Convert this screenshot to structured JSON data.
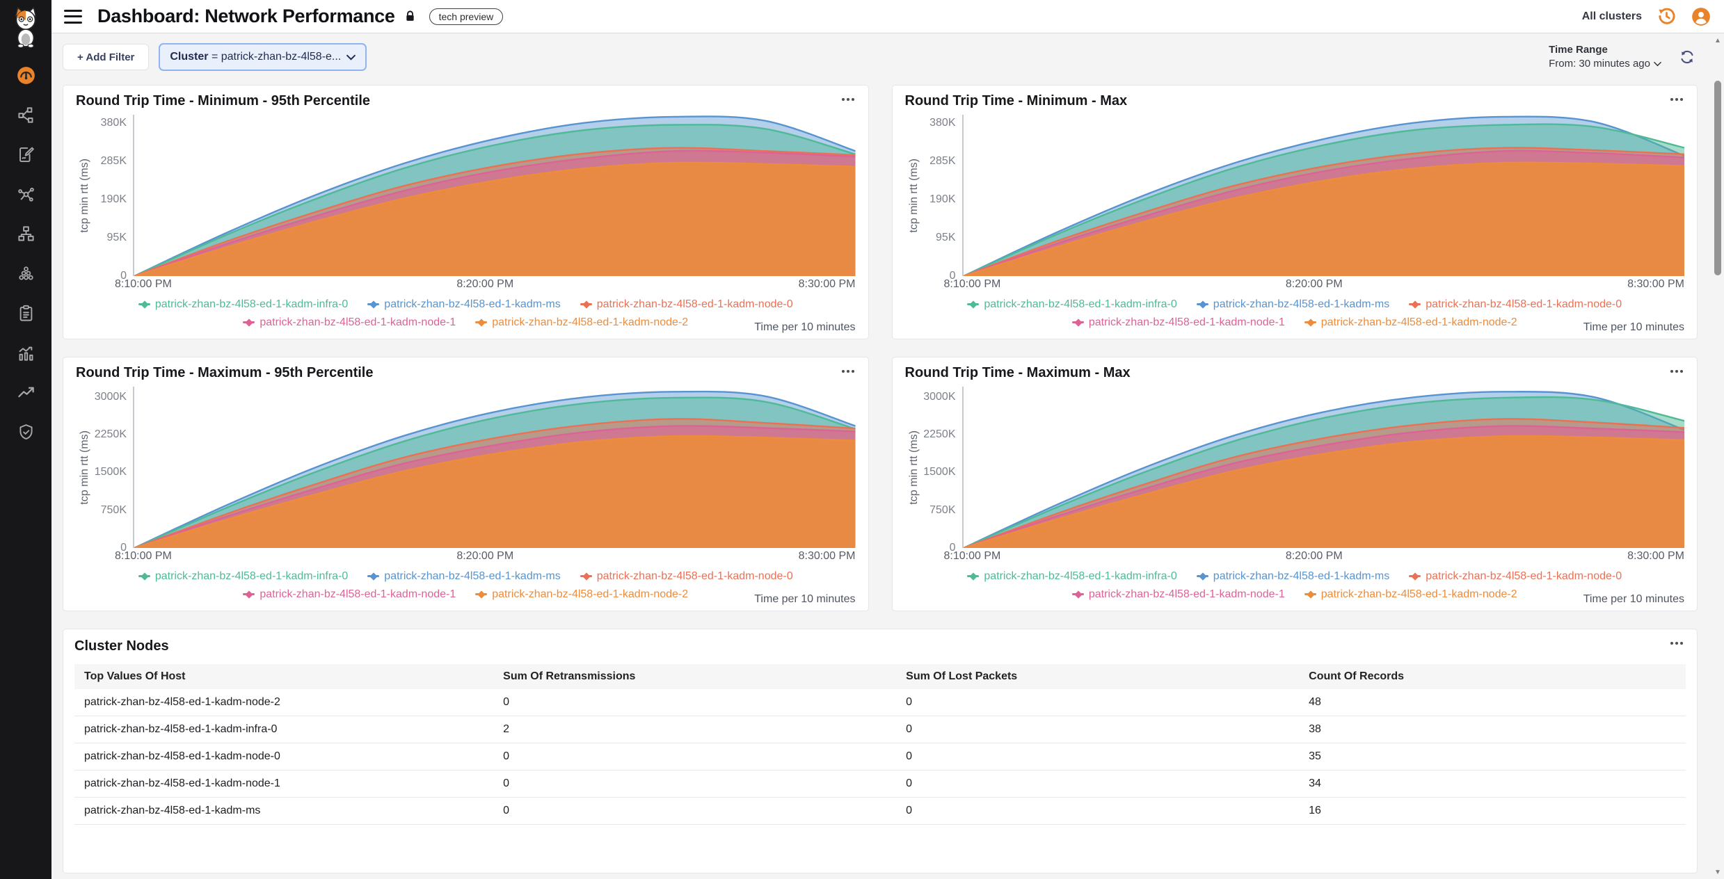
{
  "header": {
    "title": "Dashboard: Network Performance",
    "tech_preview_label": "tech preview",
    "all_clusters_label": "All clusters"
  },
  "filter_bar": {
    "add_filter_label": "+ Add Filter",
    "cluster_filter": {
      "field": "Cluster",
      "value_display": "= patrick-zhan-bz-4l58-e..."
    },
    "time_range": {
      "label": "Time Range",
      "from": "From: 30 minutes ago"
    }
  },
  "sidebar": {
    "logo_icon": "cat-mascot-logo",
    "icons": [
      "gauge-icon (active)",
      "topology-icon",
      "document-edit-icon",
      "molecule-icon",
      "sitemap-icon",
      "circle-cluster-icon",
      "clipboard-icon",
      "bar-chart-icon",
      "trend-arrow-icon",
      "shield-check-icon"
    ],
    "accent_color": "#e8832a"
  },
  "colors": {
    "accent_orange": "#e8832a",
    "series_teal": "#4fba97",
    "series_blue": "#5794d0",
    "series_coral": "#ec7054",
    "series_pink": "#dd6397",
    "series_orange": "#ec8c3c"
  },
  "chart_data": [
    {
      "type": "area",
      "title": "Round Trip Time - Minimum - 95th Percentile",
      "ylabel": "tcp min rtt (ms)",
      "footer": "Time per 10 minutes",
      "x_ticks": [
        "8:10:00 PM",
        "8:20:00 PM",
        "8:30:00 PM"
      ],
      "y_ticks": [
        {
          "label": "380K",
          "v": 380
        },
        {
          "label": "285K",
          "v": 285
        },
        {
          "label": "190K",
          "v": 190
        },
        {
          "label": "95K",
          "v": 95
        },
        {
          "label": "0",
          "v": 0
        }
      ],
      "y_max": 400,
      "draw_order": [
        1,
        0,
        2,
        3,
        4
      ],
      "series": [
        {
          "name": "patrick-zhan-bz-4l58-ed-1-kadm-infra-0",
          "color": "#4fba97",
          "fill_opacity": 0.5,
          "values": [
            0,
            100,
            190,
            268,
            325,
            362,
            375,
            365,
            302
          ]
        },
        {
          "name": "patrick-zhan-bz-4l58-ed-1-kadm-ms",
          "color": "#5794d0",
          "fill_opacity": 0.45,
          "values": [
            0,
            105,
            200,
            280,
            340,
            380,
            395,
            385,
            310
          ]
        },
        {
          "name": "patrick-zhan-bz-4l58-ed-1-kadm-node-0",
          "color": "#ec7054",
          "fill_opacity": 0.5,
          "values": [
            0,
            84,
            158,
            224,
            272,
            304,
            318,
            310,
            300
          ]
        },
        {
          "name": "patrick-zhan-bz-4l58-ed-1-kadm-node-1",
          "color": "#dd6397",
          "fill_opacity": 0.6,
          "values": [
            0,
            78,
            148,
            212,
            260,
            292,
            310,
            306,
            296
          ]
        },
        {
          "name": "patrick-zhan-bz-4l58-ed-1-kadm-node-2",
          "color": "#ec8c3c",
          "fill_opacity": 0.9,
          "values": [
            0,
            70,
            135,
            193,
            237,
            267,
            281,
            278,
            271
          ]
        }
      ]
    },
    {
      "type": "area",
      "title": "Round Trip Time - Minimum - Max",
      "ylabel": "tcp min rtt (ms)",
      "footer": "Time per 10 minutes",
      "x_ticks": [
        "8:10:00 PM",
        "8:20:00 PM",
        "8:30:00 PM"
      ],
      "y_ticks": [
        {
          "label": "380K",
          "v": 380
        },
        {
          "label": "285K",
          "v": 285
        },
        {
          "label": "190K",
          "v": 190
        },
        {
          "label": "95K",
          "v": 95
        },
        {
          "label": "0",
          "v": 0
        }
      ],
      "y_max": 400,
      "draw_order": [
        1,
        0,
        2,
        3,
        4
      ],
      "series": [
        {
          "name": "patrick-zhan-bz-4l58-ed-1-kadm-infra-0",
          "color": "#4fba97",
          "fill_opacity": 0.5,
          "values": [
            0,
            100,
            190,
            268,
            325,
            362,
            375,
            370,
            318
          ]
        },
        {
          "name": "patrick-zhan-bz-4l58-ed-1-kadm-ms",
          "color": "#5794d0",
          "fill_opacity": 0.45,
          "values": [
            0,
            105,
            200,
            280,
            340,
            380,
            395,
            382,
            298
          ]
        },
        {
          "name": "patrick-zhan-bz-4l58-ed-1-kadm-node-0",
          "color": "#ec7054",
          "fill_opacity": 0.5,
          "values": [
            0,
            84,
            158,
            224,
            272,
            304,
            318,
            312,
            302
          ]
        },
        {
          "name": "patrick-zhan-bz-4l58-ed-1-kadm-node-1",
          "color": "#dd6397",
          "fill_opacity": 0.6,
          "values": [
            0,
            78,
            148,
            212,
            260,
            292,
            310,
            305,
            294
          ]
        },
        {
          "name": "patrick-zhan-bz-4l58-ed-1-kadm-node-2",
          "color": "#ec8c3c",
          "fill_opacity": 0.9,
          "values": [
            0,
            70,
            135,
            193,
            237,
            267,
            281,
            279,
            273
          ]
        }
      ]
    },
    {
      "type": "area",
      "title": "Round Trip Time - Maximum - 95th Percentile",
      "ylabel": "tcp min rtt (ms)",
      "footer": "Time per 10 minutes",
      "x_ticks": [
        "8:10:00 PM",
        "8:20:00 PM",
        "8:30:00 PM"
      ],
      "y_ticks": [
        {
          "label": "3000K",
          "v": 3000
        },
        {
          "label": "2250K",
          "v": 2250
        },
        {
          "label": "1500K",
          "v": 1500
        },
        {
          "label": "750K",
          "v": 750
        },
        {
          "label": "0",
          "v": 0
        }
      ],
      "y_max": 3200,
      "draw_order": [
        1,
        0,
        2,
        3,
        4
      ],
      "series": [
        {
          "name": "patrick-zhan-bz-4l58-ed-1-kadm-infra-0",
          "color": "#4fba97",
          "fill_opacity": 0.5,
          "values": [
            0,
            780,
            1500,
            2120,
            2580,
            2870,
            2980,
            2900,
            2360
          ]
        },
        {
          "name": "patrick-zhan-bz-4l58-ed-1-kadm-ms",
          "color": "#5794d0",
          "fill_opacity": 0.45,
          "values": [
            0,
            830,
            1590,
            2230,
            2700,
            2990,
            3100,
            3010,
            2420
          ]
        },
        {
          "name": "patrick-zhan-bz-4l58-ed-1-kadm-node-0",
          "color": "#ec7054",
          "fill_opacity": 0.5,
          "values": [
            0,
            660,
            1260,
            1800,
            2180,
            2440,
            2560,
            2480,
            2370
          ]
        },
        {
          "name": "patrick-zhan-bz-4l58-ed-1-kadm-node-1",
          "color": "#dd6397",
          "fill_opacity": 0.6,
          "values": [
            0,
            610,
            1170,
            1680,
            2040,
            2300,
            2420,
            2380,
            2310
          ]
        },
        {
          "name": "patrick-zhan-bz-4l58-ed-1-kadm-node-2",
          "color": "#ec8c3c",
          "fill_opacity": 0.9,
          "values": [
            0,
            550,
            1060,
            1530,
            1870,
            2110,
            2220,
            2190,
            2130
          ]
        }
      ]
    },
    {
      "type": "area",
      "title": "Round Trip Time - Maximum - Max",
      "ylabel": "tcp min rtt (ms)",
      "footer": "Time per 10 minutes",
      "x_ticks": [
        "8:10:00 PM",
        "8:20:00 PM",
        "8:30:00 PM"
      ],
      "y_ticks": [
        {
          "label": "3000K",
          "v": 3000
        },
        {
          "label": "2250K",
          "v": 2250
        },
        {
          "label": "1500K",
          "v": 1500
        },
        {
          "label": "750K",
          "v": 750
        },
        {
          "label": "0",
          "v": 0
        }
      ],
      "y_max": 3200,
      "draw_order": [
        1,
        0,
        2,
        3,
        4
      ],
      "series": [
        {
          "name": "patrick-zhan-bz-4l58-ed-1-kadm-infra-0",
          "color": "#4fba97",
          "fill_opacity": 0.5,
          "values": [
            0,
            780,
            1500,
            2120,
            2580,
            2870,
            2980,
            2940,
            2520
          ]
        },
        {
          "name": "patrick-zhan-bz-4l58-ed-1-kadm-ms",
          "color": "#5794d0",
          "fill_opacity": 0.45,
          "values": [
            0,
            830,
            1590,
            2230,
            2700,
            2990,
            3100,
            2990,
            2340
          ]
        },
        {
          "name": "patrick-zhan-bz-4l58-ed-1-kadm-node-0",
          "color": "#ec7054",
          "fill_opacity": 0.5,
          "values": [
            0,
            660,
            1260,
            1800,
            2180,
            2440,
            2560,
            2490,
            2380
          ]
        },
        {
          "name": "patrick-zhan-bz-4l58-ed-1-kadm-node-1",
          "color": "#dd6397",
          "fill_opacity": 0.6,
          "values": [
            0,
            610,
            1170,
            1680,
            2040,
            2300,
            2420,
            2370,
            2300
          ]
        },
        {
          "name": "patrick-zhan-bz-4l58-ed-1-kadm-node-2",
          "color": "#ec8c3c",
          "fill_opacity": 0.9,
          "values": [
            0,
            550,
            1060,
            1530,
            1870,
            2110,
            2220,
            2195,
            2140
          ]
        }
      ]
    }
  ],
  "table": {
    "title": "Cluster Nodes",
    "columns": [
      "Top Values Of Host",
      "Sum Of Retransmissions",
      "Sum Of Lost Packets",
      "Count Of Records"
    ],
    "rows": [
      [
        "patrick-zhan-bz-4l58-ed-1-kadm-node-2",
        "0",
        "0",
        "48"
      ],
      [
        "patrick-zhan-bz-4l58-ed-1-kadm-infra-0",
        "2",
        "0",
        "38"
      ],
      [
        "patrick-zhan-bz-4l58-ed-1-kadm-node-0",
        "0",
        "0",
        "35"
      ],
      [
        "patrick-zhan-bz-4l58-ed-1-kadm-node-1",
        "0",
        "0",
        "34"
      ],
      [
        "patrick-zhan-bz-4l58-ed-1-kadm-ms",
        "0",
        "0",
        "16"
      ]
    ]
  }
}
